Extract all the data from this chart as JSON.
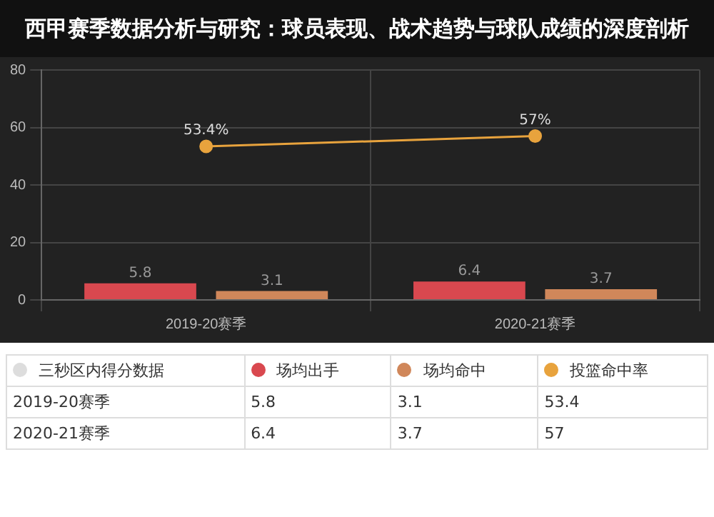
{
  "chart_data": {
    "type": "bar",
    "title": "西甲赛季数据分析与研究：球员表现、战术趋势与球队成绩的深度剖析",
    "legend_title": "三秒区内得分数据",
    "categories": [
      "2019-20赛季",
      "2020-21赛季"
    ],
    "series": [
      {
        "name": "场均出手",
        "color": "#d9484f",
        "values": [
          5.8,
          6.4
        ]
      },
      {
        "name": "场均命中",
        "color": "#d0875a",
        "values": [
          3.1,
          3.7
        ]
      },
      {
        "name": "投篮命中率",
        "color": "#e8a33d",
        "type": "line",
        "marker": "circle",
        "values": [
          53.4,
          57
        ],
        "value_labels": [
          "53.4%",
          "57%"
        ]
      }
    ],
    "annotations": [
      "5.8",
      "3.1",
      "53.4",
      "6.4",
      "3.7",
      "57"
    ],
    "ylim": [
      0,
      80
    ],
    "yticks": [
      0,
      20,
      40,
      60,
      80
    ],
    "grid": true,
    "legend": "bottom",
    "data_labels": true
  }
}
